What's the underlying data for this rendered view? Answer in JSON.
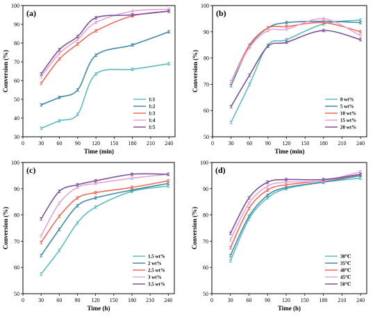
{
  "chart_data": [
    {
      "type": "line",
      "panel_label": "(a)",
      "xlabel": "Time (min)",
      "ylabel": "Conversion (%)",
      "xlim": [
        0,
        250
      ],
      "ylim": [
        30,
        100
      ],
      "xticks": [
        0,
        30,
        60,
        90,
        120,
        150,
        180,
        210,
        240
      ],
      "yticks": [
        30,
        40,
        50,
        60,
        70,
        80,
        90,
        100
      ],
      "legend_position": "bottom-right",
      "x": [
        30,
        60,
        90,
        120,
        180,
        240
      ],
      "series": [
        {
          "name": "1:1",
          "color": "#5bbcc0",
          "values": [
            34.5,
            38.5,
            42,
            63.5,
            66,
            69
          ]
        },
        {
          "name": "1:2",
          "color": "#3f88a8",
          "values": [
            47,
            51,
            55,
            73.5,
            79,
            86
          ]
        },
        {
          "name": "1:3",
          "color": "#ef6a56",
          "values": [
            58.5,
            71.5,
            79.5,
            86.5,
            94.5,
            97
          ]
        },
        {
          "name": "1:4",
          "color": "#e7a3d9",
          "values": [
            62,
            74.5,
            82,
            91,
            97,
            98
          ]
        },
        {
          "name": "1:5",
          "color": "#7a5296",
          "values": [
            63.5,
            76.5,
            83.5,
            93.5,
            95,
            97
          ]
        }
      ]
    },
    {
      "type": "line",
      "panel_label": "(b)",
      "xlabel": "Time (min)",
      "ylabel": "Conversion (%)",
      "xlim": [
        0,
        250
      ],
      "ylim": [
        50,
        100
      ],
      "xticks": [
        0,
        30,
        60,
        90,
        120,
        150,
        180,
        210,
        240
      ],
      "yticks": [
        50,
        60,
        70,
        80,
        90,
        100
      ],
      "legend_position": "bottom-right",
      "x": [
        30,
        60,
        90,
        120,
        180,
        240
      ],
      "series": [
        {
          "name": "0 wt%",
          "color": "#5bbcc0",
          "values": [
            55.5,
            70,
            85,
            87,
            93,
            94.5
          ]
        },
        {
          "name": "5 wt%",
          "color": "#3f88a8",
          "values": [
            69.5,
            84.5,
            91.5,
            93.5,
            94,
            93.5
          ]
        },
        {
          "name": "10 wt%",
          "color": "#ef6a56",
          "values": [
            71,
            85,
            91.5,
            92,
            93.5,
            90
          ]
        },
        {
          "name": "15 wt%",
          "color": "#e7a3d9",
          "values": [
            71,
            84,
            90.5,
            91,
            95,
            88.5
          ]
        },
        {
          "name": "20 wt%",
          "color": "#7a5296",
          "values": [
            61.5,
            73.5,
            84.5,
            86,
            90.5,
            87
          ]
        }
      ]
    },
    {
      "type": "line",
      "panel_label": "(c)",
      "xlabel": "Time (h)",
      "ylabel": "Conversion (%)",
      "xlim": [
        0,
        250
      ],
      "ylim": [
        50,
        100
      ],
      "xticks": [
        0,
        30,
        60,
        90,
        120,
        150,
        180,
        210,
        240
      ],
      "yticks": [
        50,
        60,
        70,
        80,
        90,
        100
      ],
      "legend_position": "bottom-right",
      "x": [
        30,
        60,
        90,
        120,
        180,
        240
      ],
      "series": [
        {
          "name": "1.5 wt%",
          "color": "#5bbcc0",
          "values": [
            57.5,
            66.5,
            77,
            83,
            89,
            91
          ]
        },
        {
          "name": "2 wt%",
          "color": "#3f88a8",
          "values": [
            64.5,
            74.5,
            83.5,
            86.5,
            89.5,
            92
          ]
        },
        {
          "name": "2.5 wt%",
          "color": "#ef6a56",
          "values": [
            69.5,
            79.5,
            86.5,
            88.5,
            90.5,
            93
          ]
        },
        {
          "name": "3 wt%",
          "color": "#e7a3d9",
          "values": [
            72,
            84.5,
            90.5,
            92,
            94,
            95.5
          ]
        },
        {
          "name": "3.5 wt%",
          "color": "#7a5296",
          "values": [
            78.5,
            89,
            91.5,
            93,
            95.5,
            95.5
          ]
        }
      ]
    },
    {
      "type": "line",
      "panel_label": "(d)",
      "xlabel": "Time (h)",
      "ylabel": "Conversion (%)",
      "xlim": [
        0,
        250
      ],
      "ylim": [
        50,
        100
      ],
      "xticks": [
        0,
        30,
        60,
        90,
        120,
        150,
        180,
        210,
        240
      ],
      "yticks": [
        50,
        60,
        70,
        80,
        90,
        100
      ],
      "legend_position": "bottom-right",
      "x": [
        30,
        60,
        90,
        120,
        180,
        240
      ],
      "series": [
        {
          "name": "30℃",
          "color": "#5bbcc0",
          "values": [
            62.5,
            78.5,
            86.5,
            90,
            92.5,
            94
          ]
        },
        {
          "name": "35℃",
          "color": "#3f88a8",
          "values": [
            64.5,
            79.5,
            87.5,
            90.5,
            92.5,
            95
          ]
        },
        {
          "name": "40℃",
          "color": "#ef6a56",
          "values": [
            67.5,
            82.5,
            89.5,
            91.5,
            93,
            95.5
          ]
        },
        {
          "name": "45℃",
          "color": "#e7a3d9",
          "values": [
            70.5,
            84.5,
            91,
            92.5,
            93,
            96.5
          ]
        },
        {
          "name": "50℃",
          "color": "#7a5296",
          "values": [
            73,
            86.5,
            92.5,
            93.5,
            93.5,
            95.5
          ]
        }
      ]
    }
  ]
}
